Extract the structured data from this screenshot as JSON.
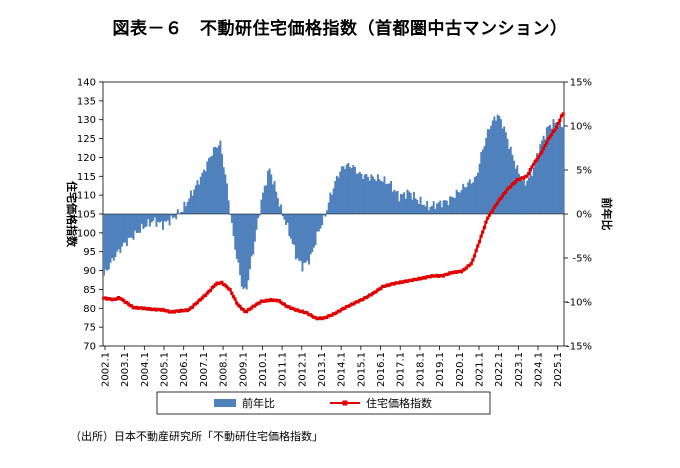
{
  "chart_data": {
    "type": "bar+line",
    "title": "図表－６　不動研住宅価格指数（首都圏中古マンション）",
    "source": "（出所）日本不動産研究所「不動研住宅価格指数」",
    "y_left": {
      "label": "住宅価格指数",
      "min": 70,
      "max": 140,
      "ticks": [
        "70",
        "75",
        "80",
        "85",
        "90",
        "95",
        "100",
        "105",
        "110",
        "115",
        "120",
        "125",
        "130",
        "135",
        "140"
      ]
    },
    "y_right": {
      "label": "前年比",
      "min": -15,
      "max": 15,
      "ticks": [
        "-15%",
        "-10%",
        "-5%",
        "0%",
        "5%",
        "10%",
        "15%"
      ]
    },
    "x_categories": [
      "2002.1",
      "2003.1",
      "2004.1",
      "2005.1",
      "2006.1",
      "2007.1",
      "2008.1",
      "2009.1",
      "2010.1",
      "2011.1",
      "2012.1",
      "2013.1",
      "2014.1",
      "2015.1",
      "2016.1",
      "2017.1",
      "2018.1",
      "2019.1",
      "2020.1",
      "2021.1",
      "2022.1",
      "2023.1",
      "2024.1",
      "2025.1"
    ],
    "legend": [
      "前年比",
      "住宅価格指数"
    ],
    "colors": {
      "bar": "#4f81bd",
      "line": "#e00000"
    },
    "series": [
      {
        "name": "前年比",
        "axis": "right",
        "anchors": [
          [
            2002.0,
            -7
          ],
          [
            2002.5,
            -5
          ],
          [
            2003.0,
            -3.5
          ],
          [
            2003.5,
            -2.5
          ],
          [
            2004.0,
            -1.5
          ],
          [
            2004.5,
            -0.8
          ],
          [
            2005.0,
            -1.2
          ],
          [
            2005.5,
            -0.5
          ],
          [
            2006.0,
            0.5
          ],
          [
            2006.5,
            2.5
          ],
          [
            2007.0,
            4.5
          ],
          [
            2007.5,
            7
          ],
          [
            2007.9,
            8.2
          ],
          [
            2008.2,
            4
          ],
          [
            2008.6,
            -3
          ],
          [
            2009.0,
            -8
          ],
          [
            2009.2,
            -9
          ],
          [
            2009.6,
            -4
          ],
          [
            2010.0,
            1.5
          ],
          [
            2010.4,
            5.2
          ],
          [
            2010.7,
            3
          ],
          [
            2011.0,
            0.5
          ],
          [
            2011.4,
            -2
          ],
          [
            2011.8,
            -5
          ],
          [
            2012.1,
            -6
          ],
          [
            2012.5,
            -5
          ],
          [
            2012.9,
            -2
          ],
          [
            2013.2,
            -0.5
          ],
          [
            2013.5,
            2
          ],
          [
            2013.9,
            4.5
          ],
          [
            2014.2,
            5.5
          ],
          [
            2014.6,
            5.5
          ],
          [
            2015.0,
            4.5
          ],
          [
            2015.5,
            4.2
          ],
          [
            2016.0,
            4
          ],
          [
            2016.5,
            3.5
          ],
          [
            2017.0,
            2
          ],
          [
            2017.5,
            2.5
          ],
          [
            2018.0,
            1.5
          ],
          [
            2018.5,
            0.8
          ],
          [
            2019.0,
            1.2
          ],
          [
            2019.5,
            1.5
          ],
          [
            2020.0,
            2.5
          ],
          [
            2020.5,
            3.5
          ],
          [
            2020.9,
            4
          ],
          [
            2021.2,
            7
          ],
          [
            2021.6,
            10
          ],
          [
            2022.0,
            11.3
          ],
          [
            2022.3,
            10
          ],
          [
            2022.7,
            7
          ],
          [
            2023.0,
            5
          ],
          [
            2023.4,
            3.5
          ],
          [
            2023.8,
            5
          ],
          [
            2024.2,
            8
          ],
          [
            2024.6,
            10
          ],
          [
            2025.0,
            10.5
          ],
          [
            2025.3,
            10
          ]
        ]
      },
      {
        "name": "住宅価格指数",
        "axis": "left",
        "anchors": [
          [
            2002.0,
            82.7
          ],
          [
            2002.5,
            82.3
          ],
          [
            2002.8,
            82.8
          ],
          [
            2003.2,
            81.3
          ],
          [
            2003.5,
            80.2
          ],
          [
            2004.0,
            80.0
          ],
          [
            2004.5,
            79.7
          ],
          [
            2005.0,
            79.6
          ],
          [
            2005.4,
            79.0
          ],
          [
            2005.8,
            79.3
          ],
          [
            2006.3,
            79.5
          ],
          [
            2006.8,
            81.8
          ],
          [
            2007.3,
            84.2
          ],
          [
            2007.7,
            86.5
          ],
          [
            2008.0,
            86.8
          ],
          [
            2008.4,
            85.0
          ],
          [
            2008.8,
            81.0
          ],
          [
            2009.2,
            79.0
          ],
          [
            2009.6,
            80.5
          ],
          [
            2010.0,
            81.8
          ],
          [
            2010.5,
            82.2
          ],
          [
            2010.9,
            82.0
          ],
          [
            2011.3,
            80.5
          ],
          [
            2011.8,
            79.5
          ],
          [
            2012.3,
            78.8
          ],
          [
            2012.8,
            77.3
          ],
          [
            2013.2,
            77.4
          ],
          [
            2013.7,
            78.5
          ],
          [
            2014.2,
            80.0
          ],
          [
            2014.7,
            81.3
          ],
          [
            2015.2,
            82.5
          ],
          [
            2015.7,
            84.0
          ],
          [
            2016.2,
            85.8
          ],
          [
            2016.7,
            86.5
          ],
          [
            2017.2,
            87.0
          ],
          [
            2017.7,
            87.5
          ],
          [
            2018.2,
            88.0
          ],
          [
            2018.7,
            88.6
          ],
          [
            2019.2,
            88.6
          ],
          [
            2019.7,
            89.5
          ],
          [
            2020.2,
            89.8
          ],
          [
            2020.7,
            92.0
          ],
          [
            2021.1,
            98.0
          ],
          [
            2021.5,
            104.0
          ],
          [
            2022.0,
            108.0
          ],
          [
            2022.5,
            111.5
          ],
          [
            2023.0,
            114.0
          ],
          [
            2023.5,
            115.0
          ],
          [
            2023.8,
            118.0
          ],
          [
            2024.2,
            121.0
          ],
          [
            2024.6,
            125.0
          ],
          [
            2025.0,
            128.0
          ],
          [
            2025.3,
            131.5
          ]
        ]
      }
    ]
  }
}
